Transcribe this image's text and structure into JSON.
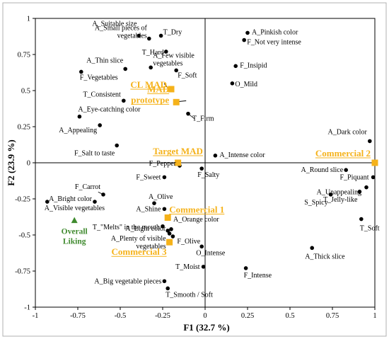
{
  "chart_data": {
    "type": "scatter",
    "xlabel": "F1 (32.7 %)",
    "ylabel": "F2 (23.9 %)",
    "xlim": [
      -1,
      1
    ],
    "ylim": [
      -1,
      1
    ],
    "xticks": [
      "-1",
      "-0.75",
      "-0.5",
      "-0.25",
      "0",
      "0.25",
      "0.5",
      "0.75",
      "1"
    ],
    "yticks": [
      "1",
      "0.75",
      "0.5",
      "0.25",
      "0",
      "-0.25",
      "-0.5",
      "-0.75",
      "-1"
    ],
    "grid": false,
    "colors": {
      "attribute": "#000000",
      "product": "#f5b21a",
      "liking": "#3f8a2e"
    },
    "attributes": [
      {
        "label": [
          "A_Suitable size"
        ],
        "x": -0.39,
        "y": 0.88
      },
      {
        "label": [
          "T_Dry"
        ],
        "x": -0.26,
        "y": 0.88
      },
      {
        "label": [
          "A_Small pieces of",
          "vegetables"
        ],
        "x": -0.33,
        "y": 0.86
      },
      {
        "label": [
          "T_Hard"
        ],
        "x": -0.23,
        "y": 0.77
      },
      {
        "label": [
          "A_Few visible",
          "vegetables"
        ],
        "x": -0.32,
        "y": 0.66
      },
      {
        "label": [
          "A_Thin slice"
        ],
        "x": -0.47,
        "y": 0.65
      },
      {
        "label": [
          "F_Vegetables"
        ],
        "x": -0.73,
        "y": 0.63
      },
      {
        "label": [
          "F_Soft"
        ],
        "x": -0.17,
        "y": 0.64
      },
      {
        "label": [
          "T_Consistent"
        ],
        "x": -0.48,
        "y": 0.43
      },
      {
        "label": [
          "A_Eye-catching color"
        ],
        "x": -0.74,
        "y": 0.32
      },
      {
        "label": [
          "A_Appealing"
        ],
        "x": -0.62,
        "y": 0.26
      },
      {
        "label": [
          "F_Salt  to taste"
        ],
        "x": -0.52,
        "y": 0.12
      },
      {
        "label": [
          "T_Firm"
        ],
        "x": -0.1,
        "y": 0.34
      },
      {
        "label": [
          "A_Pinkish color"
        ],
        "x": 0.25,
        "y": 0.9
      },
      {
        "label": [
          "F_Not very intense"
        ],
        "x": 0.23,
        "y": 0.85
      },
      {
        "label": [
          "F_Insipid"
        ],
        "x": 0.18,
        "y": 0.67
      },
      {
        "label": [
          "O_Mild"
        ],
        "x": 0.16,
        "y": 0.55
      },
      {
        "label": [
          "A_Intense color"
        ],
        "x": 0.06,
        "y": 0.05
      },
      {
        "label": [
          "A_Dark color"
        ],
        "x": 0.97,
        "y": 0.15
      },
      {
        "label": [
          "F_Pepper"
        ],
        "x": -0.15,
        "y": -0.02
      },
      {
        "label": [
          "F_Sweet"
        ],
        "x": -0.24,
        "y": -0.1
      },
      {
        "label": [
          "F_Salty"
        ],
        "x": -0.02,
        "y": -0.04
      },
      {
        "label": [
          "A_Round slice"
        ],
        "x": 0.83,
        "y": -0.05
      },
      {
        "label": [
          "F_Piquant"
        ],
        "x": 0.99,
        "y": -0.1
      },
      {
        "label": [
          "A_Unappealing"
        ],
        "x": 0.95,
        "y": -0.17
      },
      {
        "label": [
          "S_Spicy"
        ],
        "x": 0.74,
        "y": -0.22
      },
      {
        "label": [
          "T_Jelly-like"
        ],
        "x": 0.91,
        "y": -0.2
      },
      {
        "label": [
          "T_Soft"
        ],
        "x": 0.92,
        "y": -0.39
      },
      {
        "label": [
          "A_Thick slice"
        ],
        "x": 0.63,
        "y": -0.59
      },
      {
        "label": [
          "F_Carrot"
        ],
        "x": -0.6,
        "y": -0.22
      },
      {
        "label": [
          "A_Bright color"
        ],
        "x": -0.65,
        "y": -0.27
      },
      {
        "label": [
          "A_Visible vegetables"
        ],
        "x": -0.93,
        "y": -0.27
      },
      {
        "label": [
          "A_Olive"
        ],
        "x": -0.3,
        "y": -0.28
      },
      {
        "label": [
          "A_Shine"
        ],
        "x": -0.24,
        "y": -0.32
      },
      {
        "label": [
          "T_\"Melts\" in the mouth"
        ],
        "x": -0.25,
        "y": -0.44
      },
      {
        "label": [
          "A_Orange color"
        ],
        "x": -0.2,
        "y": -0.46
      },
      {
        "label": [
          "A_Light color"
        ],
        "x": -0.22,
        "y": -0.47
      },
      {
        "label": [
          "A_Plenty of visible",
          "vegetables"
        ],
        "x": -0.21,
        "y": -0.49
      },
      {
        "label": [
          "F_Olive"
        ],
        "x": -0.19,
        "y": -0.51
      },
      {
        "label": [
          "O_Intense"
        ],
        "x": -0.02,
        "y": -0.58
      },
      {
        "label": [
          "T_Moist"
        ],
        "x": -0.01,
        "y": -0.72
      },
      {
        "label": [
          "F_Intense"
        ],
        "x": 0.24,
        "y": -0.73
      },
      {
        "label": [
          "A_Big vegetable pieces"
        ],
        "x": -0.24,
        "y": -0.82
      },
      {
        "label": [
          "T_Smooth / Soft"
        ],
        "x": -0.22,
        "y": -0.87
      }
    ],
    "products": [
      {
        "label": [
          "CL MAD"
        ],
        "x": -0.2,
        "y": 0.51
      },
      {
        "label": [
          "MAD",
          "prototype"
        ],
        "x": -0.17,
        "y": 0.42
      },
      {
        "label": [
          "Target MAD"
        ],
        "x": -0.16,
        "y": 0.0
      },
      {
        "label": [
          "Commercial 2"
        ],
        "x": 1.0,
        "y": 0.0
      },
      {
        "label": [
          "Commercial 1"
        ],
        "x": -0.22,
        "y": -0.38
      },
      {
        "label": [
          "Commercial 3"
        ],
        "x": -0.21,
        "y": -0.55
      }
    ],
    "liking": {
      "label": [
        "Overall",
        "Liking"
      ],
      "x": -0.77,
      "y": -0.4
    }
  }
}
